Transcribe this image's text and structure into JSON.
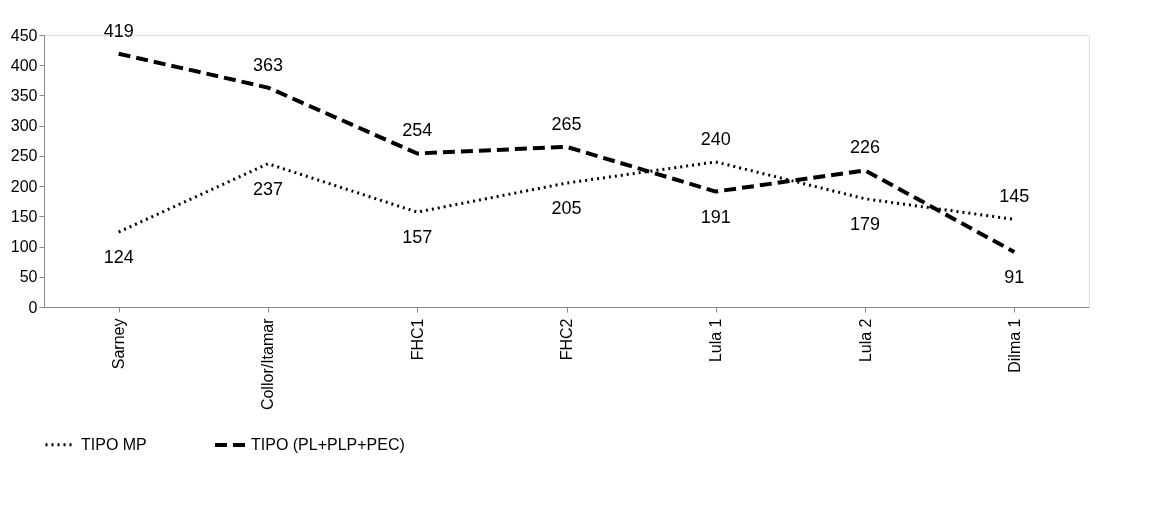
{
  "chart_data": {
    "type": "line",
    "categories": [
      "Sarney",
      "Collor/Itamar",
      "FHC1",
      "FHC2",
      "Lula 1",
      "Lula 2",
      "Dilma 1"
    ],
    "series": [
      {
        "name": "TIPO MP",
        "color": "#000000",
        "line_style": "dotted",
        "values": [
          124,
          237,
          157,
          205,
          240,
          179,
          145
        ]
      },
      {
        "name": "TIPO (PL+PLP+PEC)",
        "color": "#000000",
        "line_style": "dashed",
        "values": [
          419,
          363,
          254,
          265,
          191,
          226,
          91
        ]
      }
    ],
    "ylim": [
      0,
      450
    ],
    "yticks": [
      0,
      50,
      100,
      150,
      200,
      250,
      300,
      350,
      400,
      450
    ],
    "grid": false,
    "legend": "bottom",
    "data_labels": true,
    "marker": "none"
  }
}
